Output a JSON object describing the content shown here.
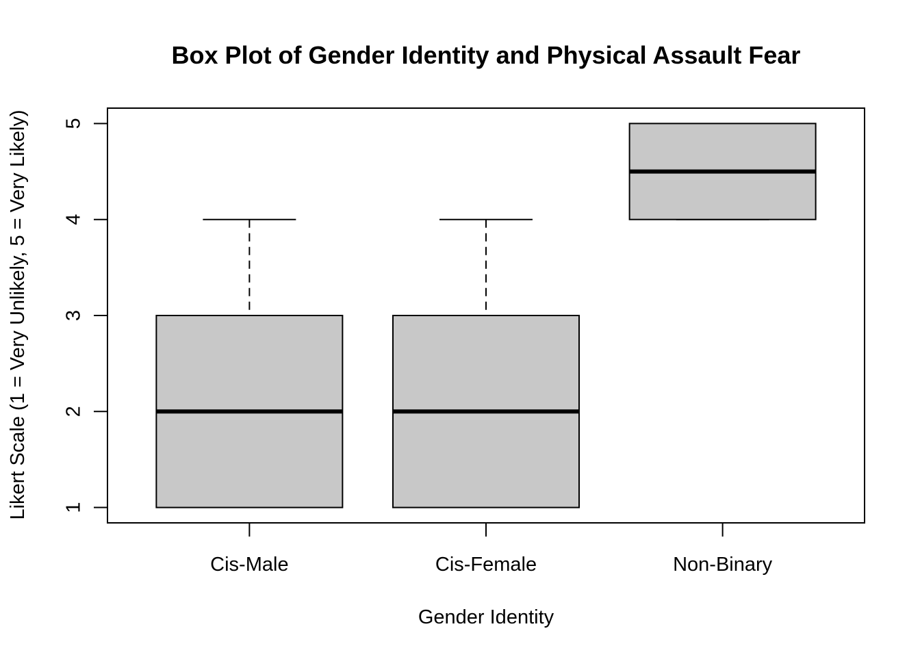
{
  "chart_data": {
    "type": "box",
    "title": "Box Plot of Gender Identity and Physical Assault Fear",
    "xlabel": "Gender Identity",
    "ylabel": "Likert Scale (1 = Very Unlikely, 5 = Very Likely)",
    "categories": [
      "Cis-Male",
      "Cis-Female",
      "Non-Binary"
    ],
    "boxes": [
      {
        "min": 1,
        "q1": 1,
        "median": 2,
        "q3": 3,
        "max": 4
      },
      {
        "min": 1,
        "q1": 1,
        "median": 2,
        "q3": 3,
        "max": 4
      },
      {
        "min": 4,
        "q1": 4,
        "median": 4.5,
        "q3": 5,
        "max": 5
      }
    ],
    "y_ticks": [
      "1",
      "2",
      "3",
      "4",
      "5"
    ],
    "ylim": [
      0.84,
      5.16
    ],
    "box_fill": "#c8c8c8"
  }
}
